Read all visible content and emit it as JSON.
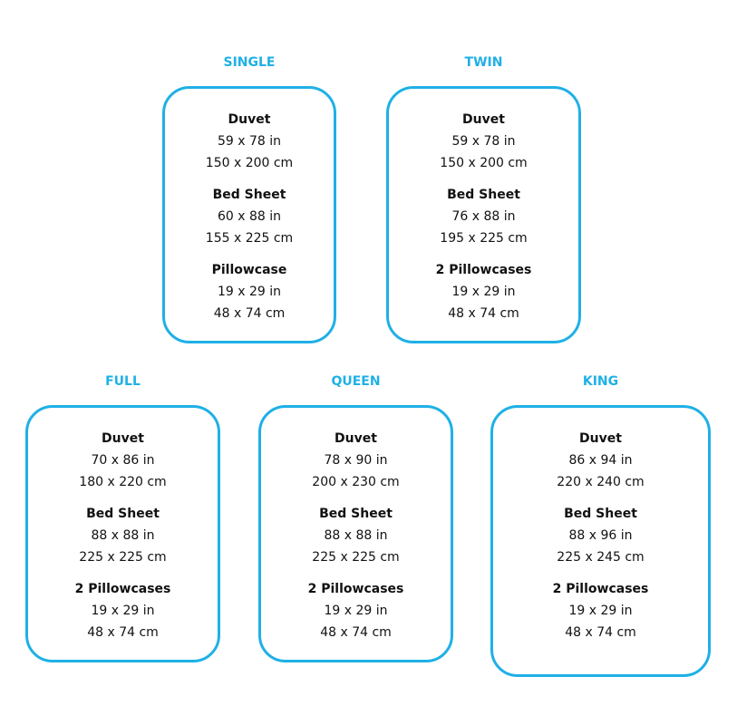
{
  "sizes": [
    {
      "name": "SINGLE",
      "items": [
        {
          "label": "Duvet",
          "in": "59 x 78 in",
          "cm": "150 x 200 cm"
        },
        {
          "label": "Bed Sheet",
          "in": "60 x 88 in",
          "cm": "155 x 225 cm"
        },
        {
          "label": "Pillowcase",
          "in": "19 x 29 in",
          "cm": "48 x 74 cm"
        }
      ]
    },
    {
      "name": "TWIN",
      "items": [
        {
          "label": "Duvet",
          "in": "59 x 78 in",
          "cm": "150 x 200 cm"
        },
        {
          "label": "Bed Sheet",
          "in": "76 x 88 in",
          "cm": "195 x 225 cm"
        },
        {
          "label": "2 Pillowcases",
          "in": "19 x 29 in",
          "cm": "48 x 74 cm"
        }
      ]
    },
    {
      "name": "FULL",
      "items": [
        {
          "label": "Duvet",
          "in": "70 x 86 in",
          "cm": "180 x 220 cm"
        },
        {
          "label": "Bed Sheet",
          "in": "88 x 88 in",
          "cm": "225 x 225 cm"
        },
        {
          "label": "2 Pillowcases",
          "in": "19 x 29 in",
          "cm": "48 x 74 cm"
        }
      ]
    },
    {
      "name": "QUEEN",
      "items": [
        {
          "label": "Duvet",
          "in": "78 x 90 in",
          "cm": "200 x 230 cm"
        },
        {
          "label": "Bed Sheet",
          "in": "88 x 88 in",
          "cm": "225 x 225 cm"
        },
        {
          "label": "2 Pillowcases",
          "in": "19 x 29 in",
          "cm": "48 x 74 cm"
        }
      ]
    },
    {
      "name": "KING",
      "items": [
        {
          "label": "Duvet",
          "in": "86 x 94 in",
          "cm": "220 x 240 cm"
        },
        {
          "label": "Bed Sheet",
          "in": "88 x 96 in",
          "cm": "225 x 245 cm"
        },
        {
          "label": "2 Pillowcases",
          "in": "19 x 29 in",
          "cm": "48 x 74 cm"
        }
      ]
    }
  ],
  "accent": "#1fb0e6"
}
